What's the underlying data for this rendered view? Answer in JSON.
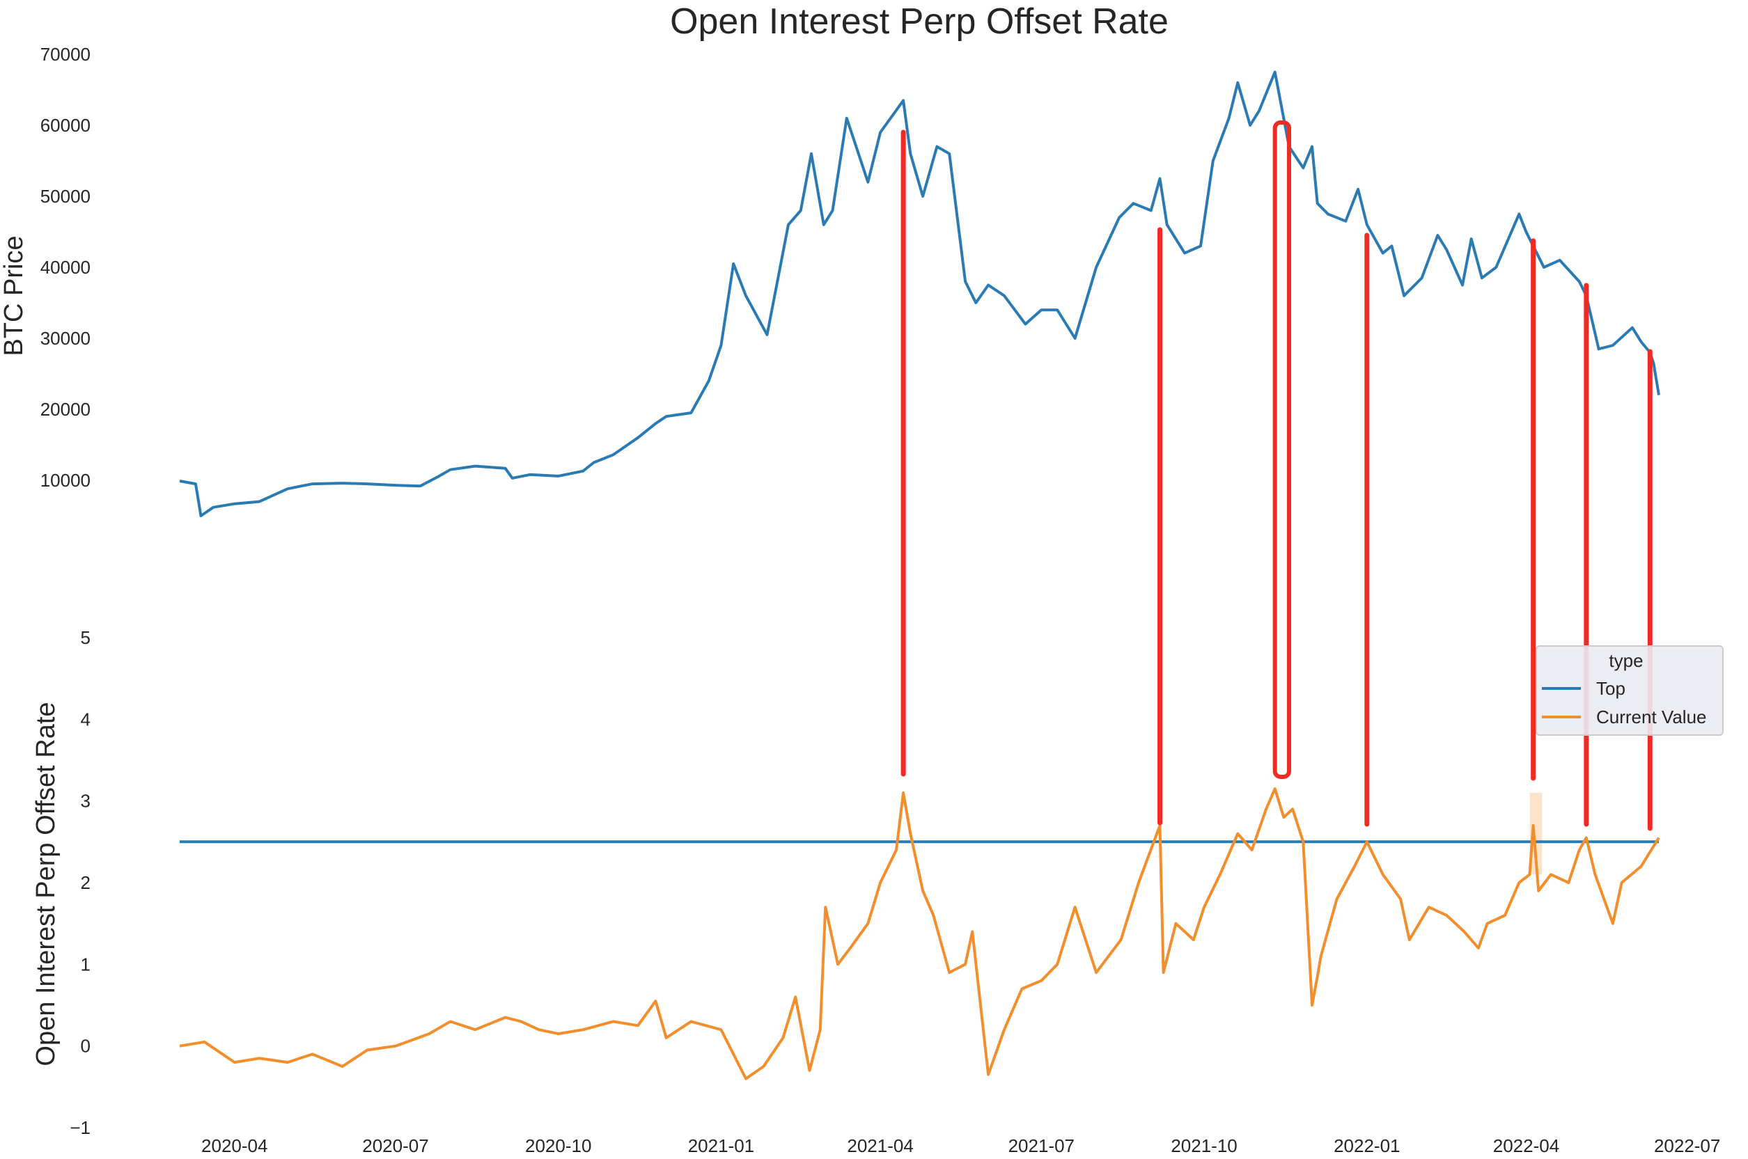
{
  "chart_data": [
    {
      "type": "line",
      "title": "Open Interest Perp Offset Rate",
      "xlabel": "",
      "ylabel": "BTC  Price",
      "ylim": [
        0,
        70000
      ],
      "y_ticks": [
        10000,
        20000,
        30000,
        40000,
        50000,
        60000,
        70000
      ],
      "grid": false,
      "series": [
        {
          "color": "#2a7ab3",
          "x": [
            "2020-03-01",
            "2020-03-10",
            "2020-03-13",
            "2020-03-20",
            "2020-04-01",
            "2020-04-15",
            "2020-05-01",
            "2020-05-15",
            "2020-06-01",
            "2020-06-15",
            "2020-07-01",
            "2020-07-15",
            "2020-07-25",
            "2020-08-01",
            "2020-08-15",
            "2020-09-01",
            "2020-09-05",
            "2020-09-15",
            "2020-10-01",
            "2020-10-15",
            "2020-10-21",
            "2020-11-01",
            "2020-11-15",
            "2020-11-25",
            "2020-12-01",
            "2020-12-15",
            "2020-12-25",
            "2021-01-01",
            "2021-01-08",
            "2021-01-15",
            "2021-01-27",
            "2021-02-08",
            "2021-02-15",
            "2021-02-21",
            "2021-02-28",
            "2021-03-05",
            "2021-03-13",
            "2021-03-25",
            "2021-04-01",
            "2021-04-14",
            "2021-04-18",
            "2021-04-25",
            "2021-05-03",
            "2021-05-10",
            "2021-05-19",
            "2021-05-25",
            "2021-06-01",
            "2021-06-10",
            "2021-06-22",
            "2021-07-01",
            "2021-07-10",
            "2021-07-20",
            "2021-08-01",
            "2021-08-14",
            "2021-08-22",
            "2021-09-01",
            "2021-09-06",
            "2021-09-10",
            "2021-09-20",
            "2021-09-29",
            "2021-10-06",
            "2021-10-15",
            "2021-10-20",
            "2021-10-27",
            "2021-11-01",
            "2021-11-10",
            "2021-11-18",
            "2021-11-26",
            "2021-12-01",
            "2021-12-04",
            "2021-12-10",
            "2021-12-20",
            "2021-12-27",
            "2022-01-01",
            "2022-01-10",
            "2022-01-15",
            "2022-01-22",
            "2022-02-01",
            "2022-02-10",
            "2022-02-15",
            "2022-02-24",
            "2022-03-01",
            "2022-03-07",
            "2022-03-15",
            "2022-03-28",
            "2022-04-01",
            "2022-04-11",
            "2022-04-20",
            "2022-05-01",
            "2022-05-05",
            "2022-05-12",
            "2022-05-20",
            "2022-05-31",
            "2022-06-05",
            "2022-06-10",
            "2022-06-12",
            "2022-06-15"
          ],
          "y": [
            9900,
            9500,
            5000,
            6200,
            6700,
            7000,
            8800,
            9500,
            9600,
            9500,
            9300,
            9200,
            10500,
            11500,
            12000,
            11700,
            10300,
            10800,
            10600,
            11300,
            12500,
            13600,
            16000,
            18000,
            19000,
            19500,
            24000,
            29000,
            40500,
            36000,
            30500,
            46000,
            48000,
            56000,
            46000,
            48000,
            61000,
            52000,
            59000,
            63500,
            56000,
            50000,
            57000,
            56000,
            38000,
            35000,
            37500,
            36000,
            32000,
            34000,
            34000,
            30000,
            40000,
            47000,
            49000,
            48000,
            52500,
            46000,
            42000,
            43000,
            55000,
            61000,
            66000,
            60000,
            62000,
            67500,
            57000,
            54000,
            57000,
            49000,
            47500,
            46500,
            51000,
            46000,
            42000,
            43000,
            36000,
            38500,
            44500,
            42500,
            37500,
            44000,
            38500,
            40000,
            47500,
            45000,
            40000,
            41000,
            38000,
            36000,
            28500,
            29000,
            31500,
            29500,
            28000,
            26500,
            22000
          ]
        }
      ]
    },
    {
      "type": "line",
      "title": "",
      "xlabel": "",
      "ylabel": "Open Interest Perp Offset Rate",
      "ylim": [
        -1,
        5.5
      ],
      "y_ticks": [
        -1,
        0,
        1,
        2,
        3,
        4,
        5
      ],
      "x_ticks": [
        "2020-04",
        "2020-07",
        "2020-10",
        "2021-01",
        "2021-04",
        "2021-07",
        "2021-10",
        "2022-01",
        "2022-04",
        "2022-07"
      ],
      "grid": false,
      "legend": {
        "title": "type",
        "placement": "right",
        "entries": [
          "Top",
          "Current Value"
        ]
      },
      "series": [
        {
          "name": "Top",
          "color": "#2a7ab3",
          "x": [
            "2020-03-01",
            "2022-06-15"
          ],
          "y": [
            2.5,
            2.5
          ]
        },
        {
          "name": "Current Value",
          "color": "#f28e2b",
          "x": [
            "2020-03-01",
            "2020-03-15",
            "2020-04-01",
            "2020-04-15",
            "2020-05-01",
            "2020-05-15",
            "2020-06-01",
            "2020-06-15",
            "2020-07-01",
            "2020-07-20",
            "2020-08-01",
            "2020-08-15",
            "2020-09-01",
            "2020-09-10",
            "2020-09-20",
            "2020-10-01",
            "2020-10-15",
            "2020-11-01",
            "2020-11-15",
            "2020-11-25",
            "2020-12-01",
            "2020-12-15",
            "2021-01-01",
            "2021-01-08",
            "2021-01-15",
            "2021-01-25",
            "2021-02-05",
            "2021-02-12",
            "2021-02-20",
            "2021-02-26",
            "2021-03-01",
            "2021-03-08",
            "2021-03-15",
            "2021-03-25",
            "2021-04-01",
            "2021-04-10",
            "2021-04-14",
            "2021-04-18",
            "2021-04-25",
            "2021-05-01",
            "2021-05-10",
            "2021-05-19",
            "2021-05-23",
            "2021-06-01",
            "2021-06-10",
            "2021-06-20",
            "2021-07-01",
            "2021-07-10",
            "2021-07-20",
            "2021-08-01",
            "2021-08-15",
            "2021-08-25",
            "2021-09-06",
            "2021-09-08",
            "2021-09-15",
            "2021-09-25",
            "2021-10-01",
            "2021-10-10",
            "2021-10-20",
            "2021-10-28",
            "2021-11-05",
            "2021-11-10",
            "2021-11-15",
            "2021-11-20",
            "2021-11-26",
            "2021-12-01",
            "2021-12-04",
            "2021-12-06",
            "2021-12-15",
            "2021-12-25",
            "2022-01-01",
            "2022-01-10",
            "2022-01-20",
            "2022-01-25",
            "2022-02-05",
            "2022-02-15",
            "2022-02-25",
            "2022-03-05",
            "2022-03-10",
            "2022-03-20",
            "2022-03-28",
            "2022-04-03",
            "2022-04-05",
            "2022-04-08",
            "2022-04-15",
            "2022-04-25",
            "2022-05-01",
            "2022-05-05",
            "2022-05-10",
            "2022-05-20",
            "2022-05-25",
            "2022-06-05",
            "2022-06-15"
          ],
          "y": [
            0.0,
            0.05,
            -0.2,
            -0.15,
            -0.2,
            -0.1,
            -0.25,
            -0.05,
            0.0,
            0.15,
            0.3,
            0.2,
            0.35,
            0.3,
            0.2,
            0.15,
            0.2,
            0.3,
            0.25,
            0.55,
            0.1,
            0.3,
            0.2,
            -0.1,
            -0.4,
            -0.25,
            0.1,
            0.6,
            -0.3,
            0.2,
            1.7,
            1.0,
            1.2,
            1.5,
            2.0,
            2.4,
            3.1,
            2.6,
            1.9,
            1.6,
            0.9,
            1.0,
            1.4,
            -0.35,
            0.2,
            0.7,
            0.8,
            1.0,
            1.7,
            0.9,
            1.3,
            2.0,
            2.7,
            0.9,
            1.5,
            1.3,
            1.7,
            2.1,
            2.6,
            2.4,
            2.9,
            3.15,
            2.8,
            2.9,
            2.5,
            0.5,
            0.85,
            1.1,
            1.8,
            2.2,
            2.5,
            2.1,
            1.8,
            1.3,
            1.7,
            1.6,
            1.4,
            1.2,
            1.5,
            1.6,
            2.0,
            2.1,
            2.7,
            1.9,
            2.1,
            2.0,
            2.4,
            2.55,
            2.1,
            1.5,
            2.0,
            2.2,
            2.55
          ]
        }
      ],
      "uncertainty_band": {
        "x": [
          "2022-04-03",
          "2022-04-10"
        ],
        "upper": 3.1,
        "lower": 2.1,
        "color": "#f28e2b"
      },
      "annotations": {
        "color": "#ee2c24",
        "vertical_markers": [
          "2021-04-14",
          "2021-09-06",
          "2022-01-01",
          "2022-04-05",
          "2022-05-05",
          "2022-06-10"
        ],
        "highlight_range": [
          "2021-11-10",
          "2021-11-18"
        ]
      }
    }
  ]
}
